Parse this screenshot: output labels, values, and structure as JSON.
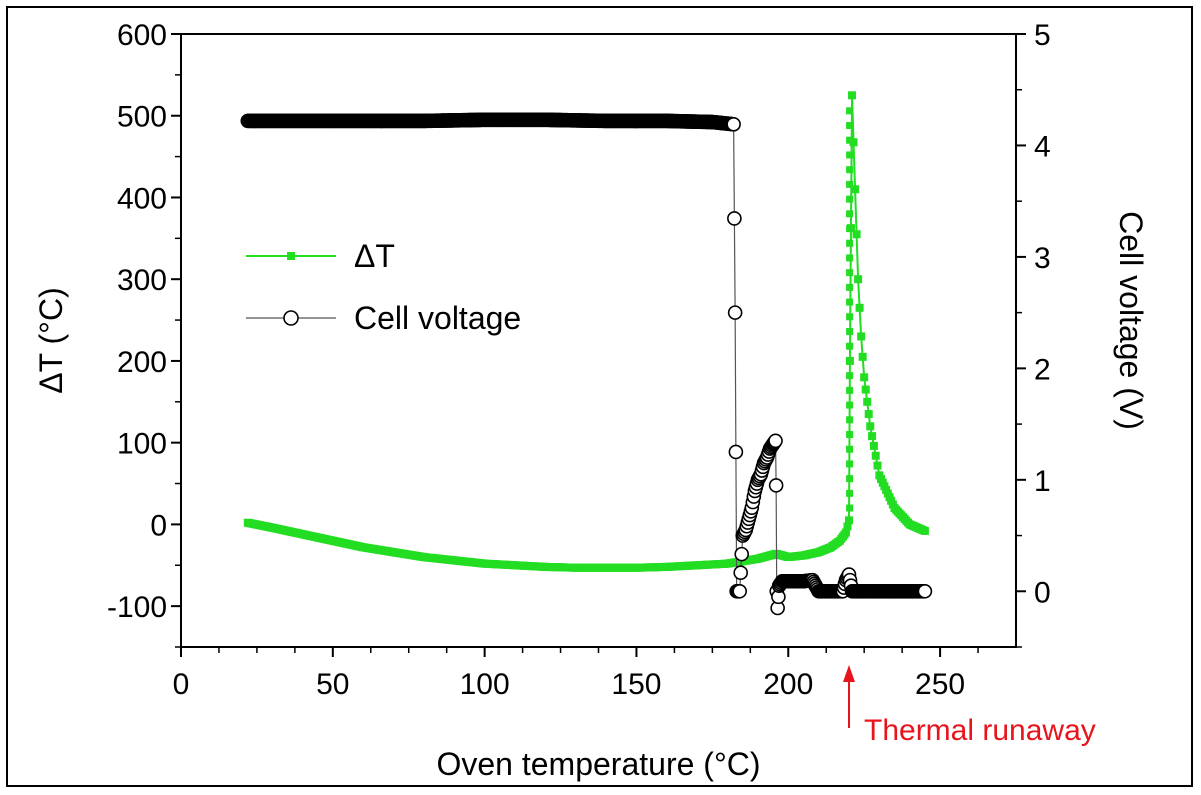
{
  "chart_data": {
    "type": "line",
    "title": "",
    "xlabel": "Oven temperature (°C)",
    "ylabel_left": "ΔT (°C)",
    "ylabel_right": "Cell voltage (V)",
    "xlim": [
      0,
      275
    ],
    "ylim_left": [
      -150,
      600
    ],
    "ylim_right": [
      -0.5,
      5
    ],
    "x_ticks": [
      0,
      50,
      100,
      150,
      200,
      250
    ],
    "y_left_ticks": [
      -100,
      0,
      100,
      200,
      300,
      400,
      500,
      600
    ],
    "y_right_ticks": [
      0,
      1,
      2,
      3,
      4,
      5
    ],
    "grid": false,
    "legend": {
      "placement": "upper-left",
      "entries": [
        {
          "label": "ΔT",
          "color": "#22dd22",
          "marker": "filled-square"
        },
        {
          "label": "Cell voltage",
          "color": "#000000",
          "marker": "open-circle"
        }
      ]
    },
    "annotations": [
      {
        "text": "Thermal runaway",
        "x": 220,
        "color": "#e8141c",
        "arrow": "up"
      }
    ],
    "series": [
      {
        "name": "ΔT",
        "axis": "left",
        "color": "#22dd22",
        "x": [
          22,
          30,
          40,
          50,
          60,
          70,
          80,
          90,
          100,
          110,
          120,
          130,
          140,
          150,
          160,
          170,
          180,
          185,
          190,
          194,
          196,
          198,
          200,
          205,
          210,
          214,
          217,
          219,
          220,
          220.3,
          221,
          222,
          223,
          224,
          225,
          227,
          230,
          235,
          240,
          245
        ],
        "y": [
          2,
          -4,
          -12,
          -20,
          -28,
          -34,
          -40,
          -44,
          -48,
          -50,
          -52,
          -53,
          -53,
          -53,
          -52,
          -50,
          -48,
          -45,
          -42,
          -38,
          -36,
          -38,
          -40,
          -38,
          -34,
          -28,
          -20,
          -10,
          5,
          200,
          525,
          410,
          300,
          230,
          180,
          120,
          60,
          20,
          0,
          -8
        ]
      },
      {
        "name": "Cell voltage",
        "axis": "right",
        "color": "#000000",
        "x": [
          22,
          40,
          60,
          80,
          100,
          120,
          140,
          160,
          175,
          182,
          182.5,
          183,
          183.2,
          184,
          185,
          186,
          187,
          188,
          189,
          190,
          191,
          192,
          193,
          194,
          195,
          195.8,
          196,
          196.2,
          196.5,
          197,
          198,
          200,
          205,
          208,
          210,
          215,
          218,
          219,
          220,
          221,
          225,
          230,
          235,
          240,
          245
        ],
        "y": [
          4.22,
          4.22,
          4.22,
          4.22,
          4.23,
          4.23,
          4.22,
          4.22,
          4.21,
          4.19,
          2.5,
          0.0,
          0.0,
          0.0,
          0.5,
          0.55,
          0.65,
          0.75,
          0.9,
          1.0,
          1.05,
          1.15,
          1.2,
          1.28,
          1.32,
          1.35,
          0.95,
          0.0,
          -0.15,
          0.05,
          0.09,
          0.09,
          0.09,
          0.1,
          0.0,
          0.0,
          0.0,
          0.1,
          0.15,
          0.0,
          0.0,
          0.0,
          0.0,
          0.0,
          0.0
        ]
      }
    ]
  }
}
